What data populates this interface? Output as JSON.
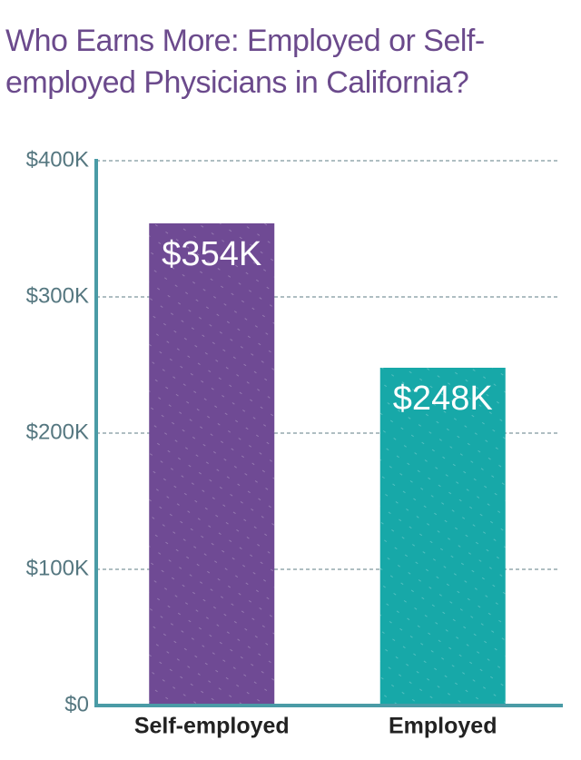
{
  "chart_data": {
    "type": "bar",
    "title": "Who Earns More: Employed or Self-employed Physicians in California?",
    "categories": [
      "Self-employed",
      "Employed"
    ],
    "values": [
      354000,
      248000
    ],
    "value_labels": [
      "$354K",
      "$248K"
    ],
    "colors": [
      "#6f4a94",
      "#17a8a8"
    ],
    "ylim": [
      0,
      400000
    ],
    "yticks": [
      {
        "value": 0,
        "label": "$0"
      },
      {
        "value": 100000,
        "label": "$100K"
      },
      {
        "value": 200000,
        "label": "$200K"
      },
      {
        "value": 300000,
        "label": "$300K"
      },
      {
        "value": 400000,
        "label": "$400K"
      }
    ],
    "grid": true
  }
}
